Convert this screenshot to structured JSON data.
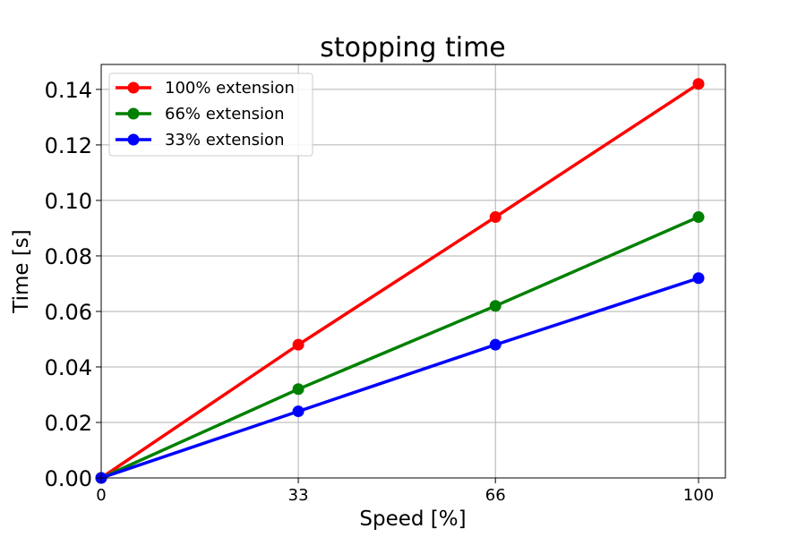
{
  "chart_data": {
    "type": "line",
    "title": "stopping time",
    "xlabel": "Speed [%]",
    "ylabel": "Time [s]",
    "x": [
      0,
      33,
      66,
      100
    ],
    "xticks": [
      0,
      33,
      66,
      100
    ],
    "xtick_labels": [
      "0",
      "33",
      "66",
      "100"
    ],
    "xlim": [
      0,
      104.5
    ],
    "ylim": [
      0,
      0.149
    ],
    "yticks": [
      0.0,
      0.02,
      0.04,
      0.06,
      0.08,
      0.1,
      0.12,
      0.14
    ],
    "ytick_labels": [
      "0.00",
      "0.02",
      "0.04",
      "0.06",
      "0.08",
      "0.10",
      "0.12",
      "0.14"
    ],
    "grid": true,
    "legend_position": "top-left",
    "series": [
      {
        "name": "100% extension",
        "color": "#ff0000",
        "values": [
          0.0,
          0.048,
          0.094,
          0.142
        ]
      },
      {
        "name": "66% extension",
        "color": "#008000",
        "values": [
          0.0,
          0.032,
          0.062,
          0.094
        ]
      },
      {
        "name": "33% extension",
        "color": "#0000ff",
        "values": [
          0.0,
          0.024,
          0.048,
          0.072
        ]
      }
    ]
  }
}
